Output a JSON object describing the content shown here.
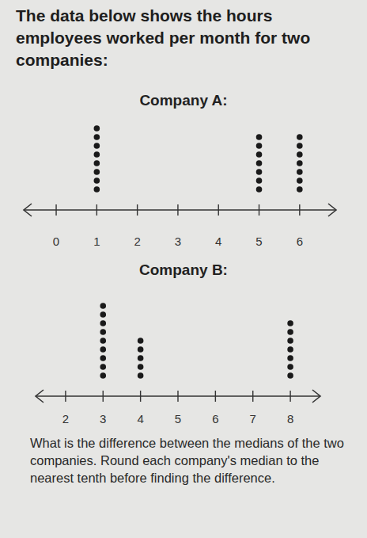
{
  "header": {
    "text": "The data below shows the hours employees worked per month for two companies:"
  },
  "chart_data": [
    {
      "type": "dot",
      "title": "Company A:",
      "x": [
        1,
        5,
        6
      ],
      "values": [
        8,
        7,
        7
      ],
      "xlim": [
        -0.8,
        6.9
      ],
      "xticks": [
        0,
        1,
        2,
        3,
        4,
        5,
        6
      ],
      "color": "#1a1a1a"
    },
    {
      "type": "dot",
      "title": "Company B:",
      "x": [
        3,
        4,
        8
      ],
      "values": [
        9,
        5,
        7
      ],
      "xlim": [
        1.2,
        8.8
      ],
      "xticks": [
        2,
        3,
        4,
        5,
        6,
        7,
        8
      ],
      "color": "#1a1a1a"
    }
  ],
  "question": {
    "text": "What is the difference between the medians of the two companies. Round each company's median to the nearest tenth before finding the difference."
  }
}
